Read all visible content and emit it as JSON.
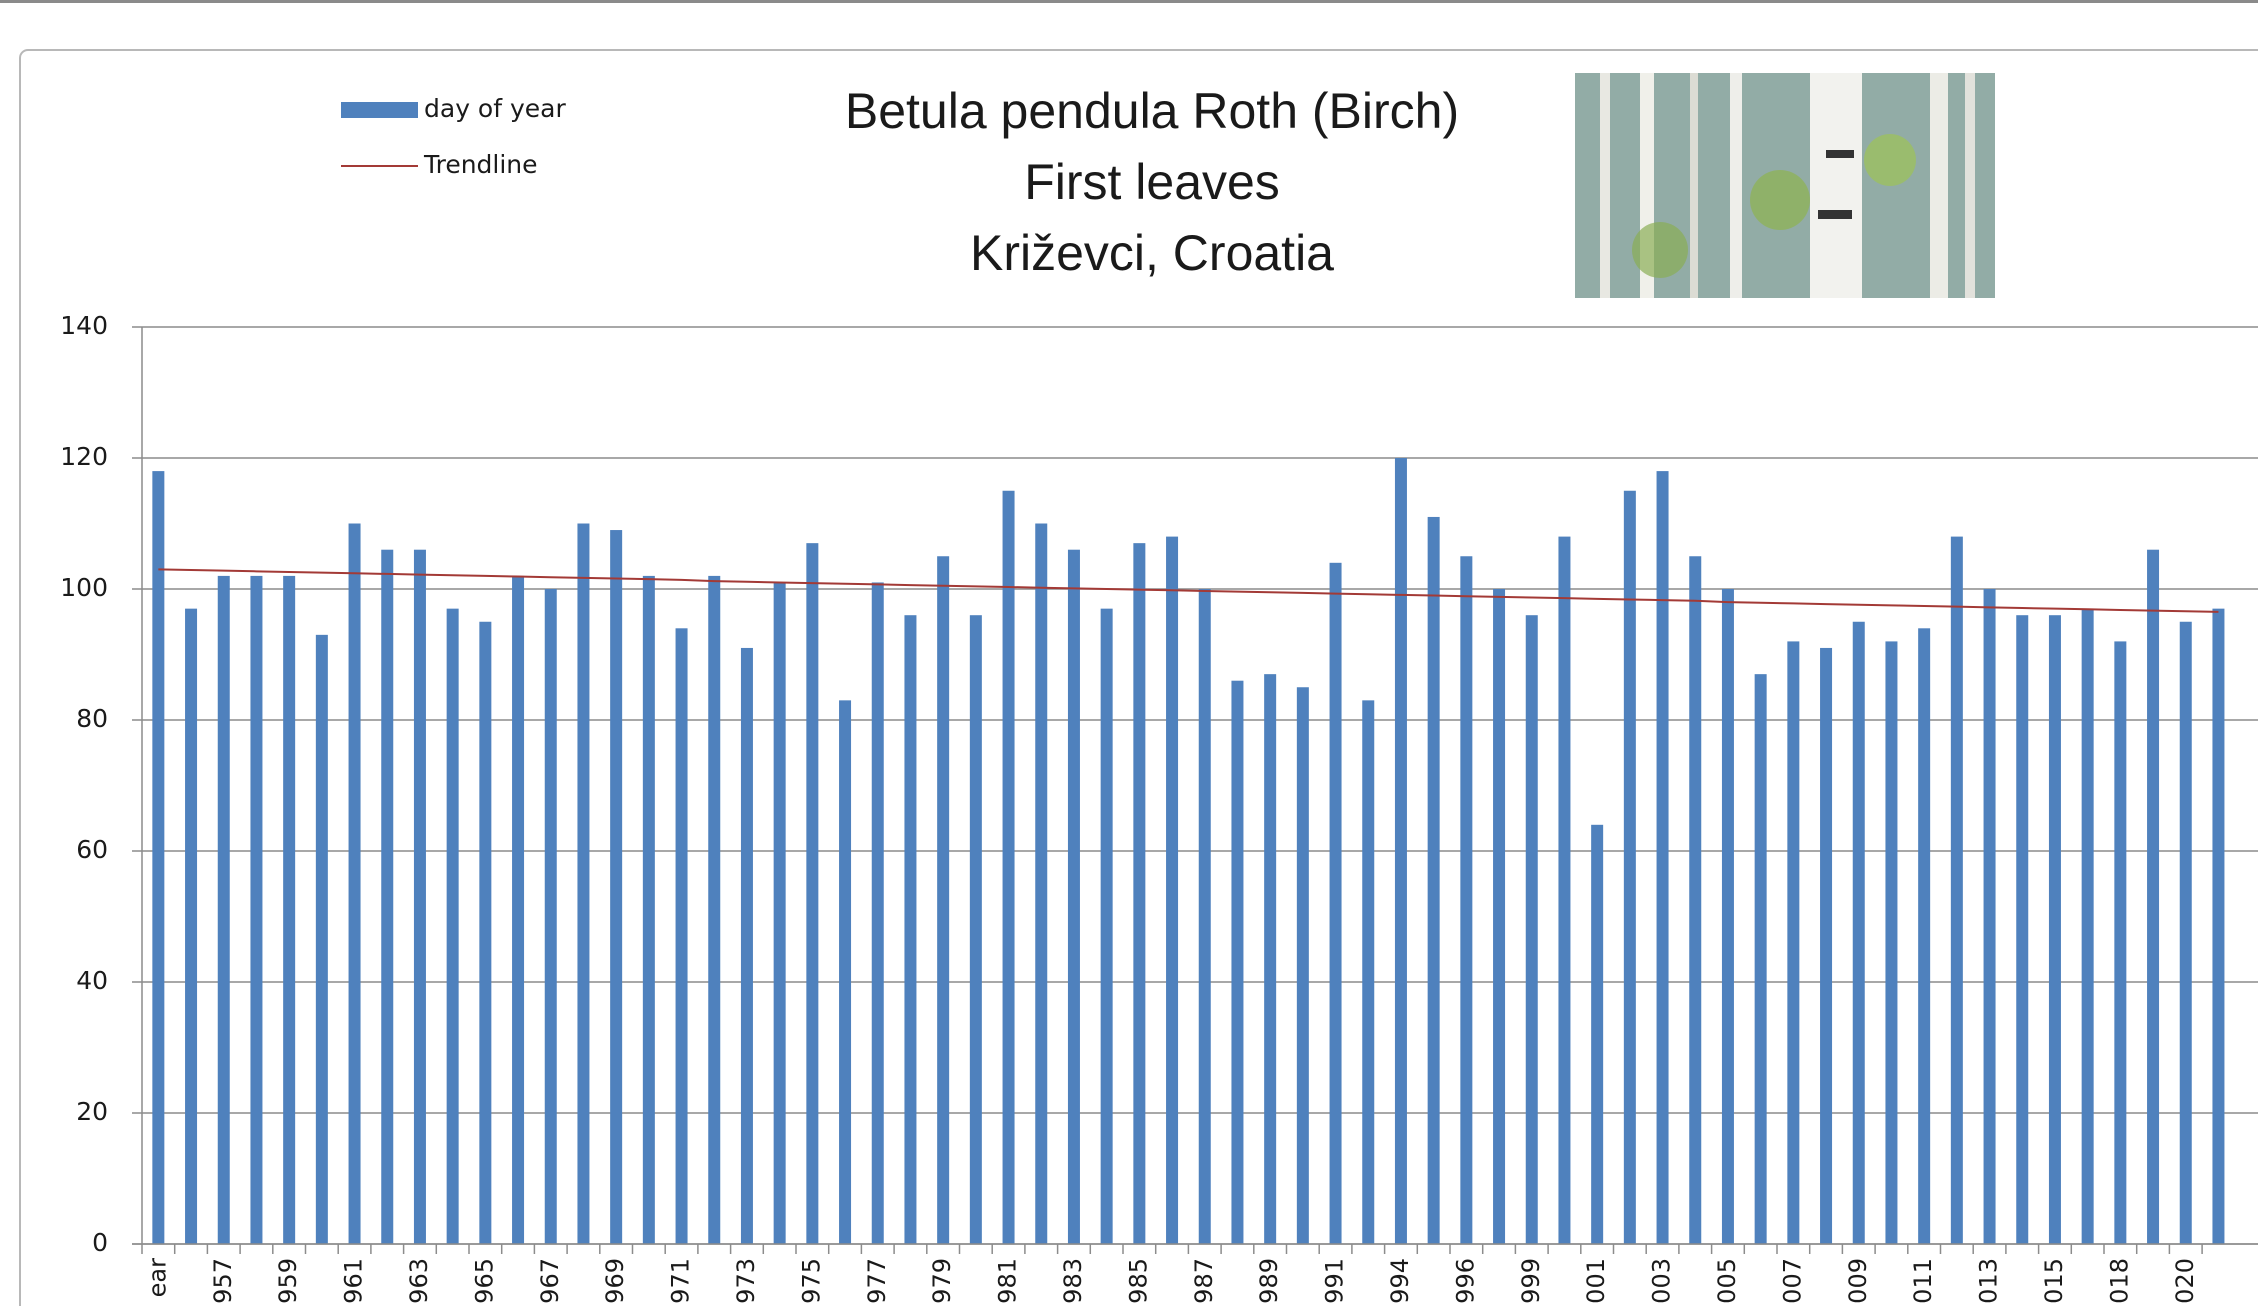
{
  "chart_data": {
    "type": "bar",
    "title": [
      "Betula pendula Roth (Birch)",
      "First leaves",
      "Križevci, Croatia"
    ],
    "categories": [
      "ear",
      null,
      "957",
      null,
      "959",
      null,
      "961",
      null,
      "963",
      null,
      "965",
      null,
      "967",
      null,
      "969",
      null,
      "971",
      null,
      "973",
      null,
      "975",
      null,
      "977",
      null,
      "979",
      null,
      "981",
      null,
      "983",
      null,
      "985",
      null,
      "987",
      null,
      "989",
      null,
      "991",
      null,
      "994",
      null,
      "996",
      null,
      "999",
      null,
      "001",
      null,
      "003",
      null,
      "005",
      null,
      "007",
      null,
      "009",
      null,
      "011",
      null,
      "013",
      null,
      "015",
      null,
      "018",
      null,
      "020",
      null
    ],
    "series": [
      {
        "name": "day of year",
        "type": "bar",
        "color": "#4f81bd",
        "values": [
          118,
          97,
          102,
          102,
          102,
          93,
          110,
          106,
          106,
          97,
          95,
          102,
          100,
          110,
          109,
          102,
          94,
          102,
          91,
          101,
          107,
          83,
          101,
          96,
          105,
          96,
          115,
          110,
          106,
          97,
          107,
          108,
          100,
          86,
          87,
          85,
          104,
          83,
          120,
          111,
          105,
          100,
          96,
          108,
          64,
          115,
          118,
          105,
          100,
          87,
          92,
          91,
          95,
          92,
          94,
          108,
          100,
          96,
          96,
          97,
          92,
          106,
          95,
          97
        ]
      },
      {
        "name": "Trendline",
        "type": "line",
        "color": "#a33a36",
        "values": [
          103.0,
          102.9,
          102.8,
          102.7,
          102.6,
          102.5,
          102.4,
          102.3,
          102.2,
          102.1,
          102.0,
          101.9,
          101.8,
          101.7,
          101.6,
          101.5,
          101.4,
          101.2,
          101.1,
          101.0,
          100.9,
          100.8,
          100.7,
          100.6,
          100.5,
          100.4,
          100.3,
          100.2,
          100.1,
          100.0,
          99.9,
          99.8,
          99.7,
          99.6,
          99.5,
          99.4,
          99.3,
          99.2,
          99.1,
          99.0,
          98.9,
          98.8,
          98.7,
          98.6,
          98.5,
          98.4,
          98.3,
          98.2,
          98.0,
          97.9,
          97.8,
          97.7,
          97.6,
          97.5,
          97.4,
          97.3,
          97.2,
          97.1,
          97.0,
          96.9,
          96.8,
          96.7,
          96.6,
          96.5
        ]
      }
    ],
    "ylim": [
      0,
      140
    ],
    "yticks": [
      0,
      20,
      40,
      60,
      80,
      100,
      120,
      140
    ],
    "grid": true
  }
}
